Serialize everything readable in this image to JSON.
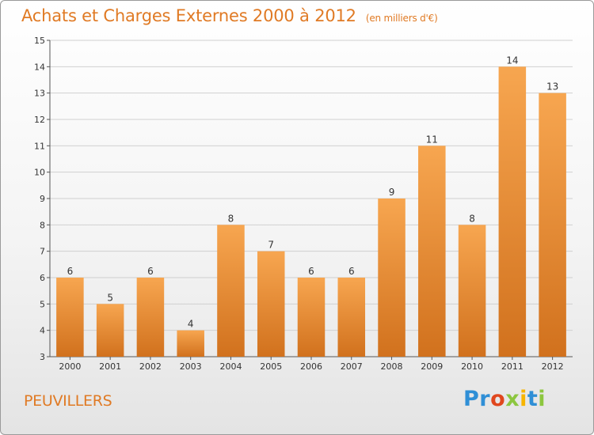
{
  "title": "Achats et Charges Externes 2000 à 2012",
  "unit": "(en milliers d'€)",
  "commune": "PEUVILLERS",
  "logo": {
    "text": "Proxiti",
    "letters": [
      {
        "ch": "P",
        "color": "#2f8fd6"
      },
      {
        "ch": "r",
        "color": "#2f8fd6"
      },
      {
        "ch": "o",
        "color": "#e0471e"
      },
      {
        "ch": "x",
        "color": "#8cc63f"
      },
      {
        "ch": "i",
        "color": "#f7b500"
      },
      {
        "ch": "t",
        "color": "#2f8fd6"
      },
      {
        "ch": "i",
        "color": "#8cc63f"
      }
    ]
  },
  "colors": {
    "bar_top": "#f7a650",
    "bar_bottom": "#d1711d",
    "text_accent": "#e07a24",
    "grid": "#d0d0d0"
  },
  "chart_data": {
    "type": "bar",
    "categories": [
      "2000",
      "2001",
      "2002",
      "2003",
      "2004",
      "2005",
      "2006",
      "2007",
      "2008",
      "2009",
      "2010",
      "2011",
      "2012"
    ],
    "values": [
      6,
      5,
      6,
      4,
      8,
      7,
      6,
      6,
      9,
      11,
      8,
      14,
      13
    ],
    "ylim": [
      3,
      15
    ],
    "yticks": [
      3,
      4,
      5,
      6,
      7,
      8,
      9,
      10,
      11,
      12,
      13,
      14,
      15
    ],
    "title": "Achats et Charges Externes 2000 à 2012",
    "xlabel": "",
    "ylabel": "",
    "grid": true
  }
}
